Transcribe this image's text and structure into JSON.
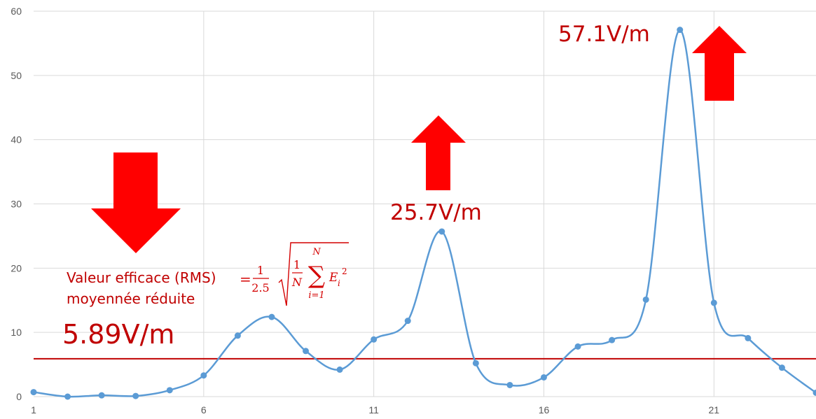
{
  "chart_data": {
    "type": "line",
    "x": [
      1,
      2,
      3,
      4,
      5,
      6,
      7,
      8,
      9,
      10,
      11,
      12,
      13,
      14,
      15,
      16,
      17,
      18,
      19,
      20,
      21,
      22,
      23,
      24
    ],
    "series": [
      {
        "values": [
          0.7,
          0.0,
          0.2,
          0.1,
          1.0,
          3.3,
          9.5,
          12.4,
          7.1,
          4.2,
          8.9,
          11.8,
          25.7,
          5.2,
          1.8,
          3.0,
          7.8,
          8.8,
          15.1,
          57.1,
          14.6,
          9.1,
          4.5,
          0.6
        ],
        "color": "#5b9bd5"
      }
    ],
    "reference_line": {
      "value": 5.89,
      "color": "#c00000"
    },
    "ylim": [
      0,
      60
    ],
    "y_ticks": [
      "0",
      "10",
      "20",
      "30",
      "40",
      "50",
      "60"
    ],
    "x_ticks": [
      "1",
      "6",
      "11",
      "16",
      "21"
    ],
    "x_tick_values": [
      1,
      6,
      11,
      16,
      21
    ],
    "grid": true,
    "annotations": {
      "peak_max": "57.1V/m",
      "peak_mid": "25.7V/m",
      "rms_value": "5.89V/m",
      "rms_line1": "Valeur efficace (RMS)",
      "rms_line2": "moyennée réduite",
      "formula_eq": "=",
      "formula_num": "1",
      "formula_den": "2.5",
      "formula_inner_num": "1",
      "formula_inner_den": "N",
      "formula_sum_top": "N",
      "formula_sum_sym": "∑",
      "formula_sum_bottom": "i=1",
      "formula_term": "E",
      "formula_sub": "i",
      "formula_sup": "2"
    },
    "arrow_color": "#ff0000"
  }
}
